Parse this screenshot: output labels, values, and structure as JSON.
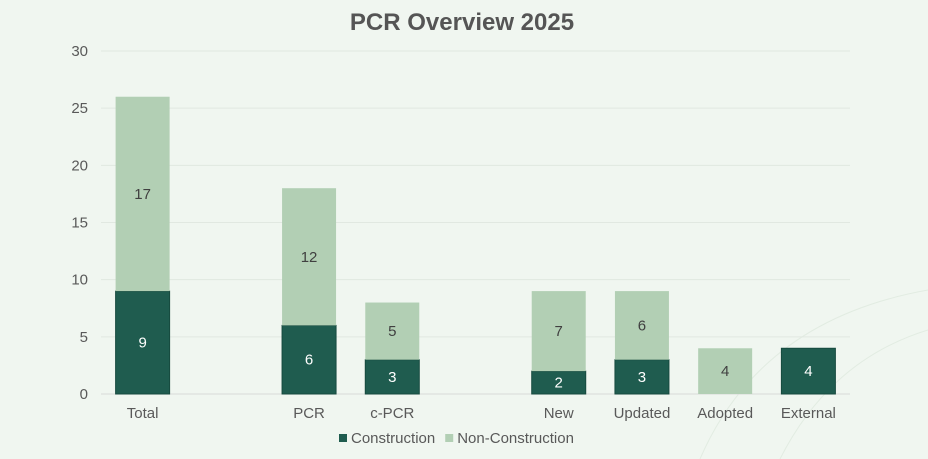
{
  "chart_data": {
    "type": "bar",
    "stacked": true,
    "title": "PCR Overview 2025",
    "xlabel": "",
    "ylabel": "",
    "ylim": [
      0,
      30
    ],
    "yticks": [
      0,
      5,
      10,
      15,
      20,
      25,
      30
    ],
    "grid": true,
    "legend_position": "bottom",
    "categories": [
      "Total",
      "",
      "PCR",
      "c-PCR",
      "",
      "New",
      "Updated",
      "Adopted",
      "External"
    ],
    "series": [
      {
        "name": "Construction",
        "color": "#1f5c4f",
        "label_color": "#ffffff",
        "values": [
          9,
          0,
          6,
          3,
          0,
          2,
          3,
          0,
          4
        ]
      },
      {
        "name": "Non-Construction",
        "color": "#b2cfb4",
        "label_color": "#404040",
        "values": [
          17,
          0,
          12,
          5,
          0,
          7,
          6,
          4,
          0
        ]
      }
    ]
  }
}
